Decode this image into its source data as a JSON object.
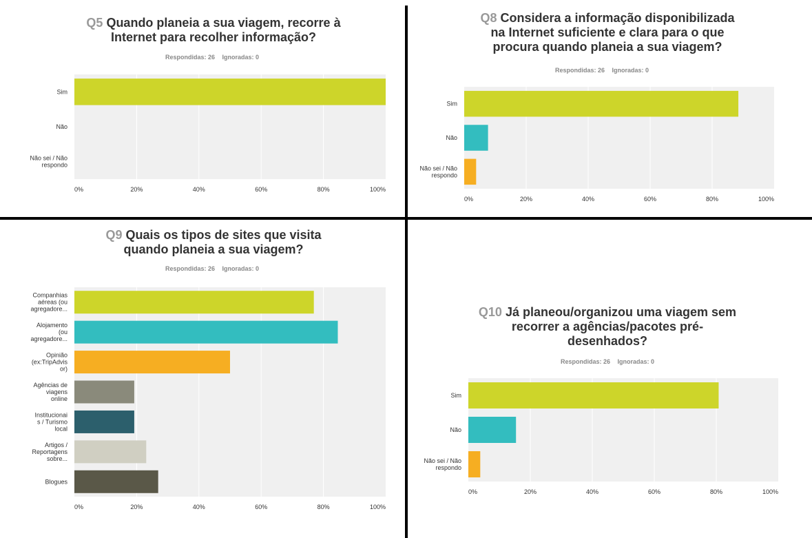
{
  "colors": {
    "yellow_green": "#cdd52a",
    "teal": "#33bdbf",
    "orange": "#f6ae22",
    "gray": "#8a8a7b",
    "dark_teal": "#2c5f6c",
    "light_gray": "#d0cfc2",
    "dark_olive": "#5a5848",
    "plot_bg": "#f0f0f0",
    "grid": "#ffffff"
  },
  "chart_data": [
    {
      "id": "q5",
      "type": "bar",
      "orientation": "horizontal",
      "qnum": "Q5",
      "title": "Quando planeia a sua viagem, recorre à\nInternet para recolher informação?",
      "stats": {
        "answered": "Respondidas: 26",
        "skipped": "Ignoradas: 0"
      },
      "categories": [
        [
          "Sim"
        ],
        [
          "Não"
        ],
        [
          "Não sei / Não",
          "respondo"
        ]
      ],
      "values": [
        100,
        0,
        0
      ],
      "colors": [
        "#cdd52a",
        "#33bdbf",
        "#f6ae22"
      ],
      "xlim": [
        0,
        100
      ],
      "xticks": [
        "0%",
        "20%",
        "40%",
        "60%",
        "80%",
        "100%"
      ],
      "grid": true
    },
    {
      "id": "q8",
      "type": "bar",
      "orientation": "horizontal",
      "qnum": "Q8",
      "title": "Considera a informação disponibilizada\nna Internet suficiente e clara para o que\nprocura quando planeia a sua viagem?",
      "stats": {
        "answered": "Respondidas: 26",
        "skipped": "Ignoradas: 0"
      },
      "categories": [
        [
          "Sim"
        ],
        [
          "Não"
        ],
        [
          "Não sei / Não",
          "respondo"
        ]
      ],
      "values": [
        88.46,
        7.69,
        3.85
      ],
      "colors": [
        "#cdd52a",
        "#33bdbf",
        "#f6ae22"
      ],
      "xlim": [
        0,
        100
      ],
      "xticks": [
        "0%",
        "20%",
        "40%",
        "60%",
        "80%",
        "100%"
      ],
      "grid": true
    },
    {
      "id": "q9",
      "type": "bar",
      "orientation": "horizontal",
      "qnum": "Q9",
      "title": "Quais os tipos de sites que visita\nquando planeia a sua viagem?",
      "stats": {
        "answered": "Respondidas: 26",
        "skipped": "Ignoradas: 0"
      },
      "categories": [
        [
          "Companhias",
          "aéreas (ou",
          "agregadore..."
        ],
        [
          "Alojamento",
          "(ou",
          "agregadore..."
        ],
        [
          "Opinião",
          "(ex:TripAdvis",
          "or)"
        ],
        [
          "Agências de",
          "viagens",
          "online"
        ],
        [
          "Institucionai",
          "s / Turismo",
          "local"
        ],
        [
          "Artigos /",
          "Reportagens",
          "sobre..."
        ],
        [
          "Blogues"
        ]
      ],
      "values": [
        76.92,
        84.62,
        50.0,
        19.23,
        19.23,
        23.08,
        26.92
      ],
      "colors": [
        "#cdd52a",
        "#33bdbf",
        "#f6ae22",
        "#8a8a7b",
        "#2c5f6c",
        "#d0cfc2",
        "#5a5848"
      ],
      "xlim": [
        0,
        100
      ],
      "xticks": [
        "0%",
        "20%",
        "40%",
        "60%",
        "80%",
        "100%"
      ],
      "grid": true
    },
    {
      "id": "q10",
      "type": "bar",
      "orientation": "horizontal",
      "qnum": "Q10",
      "title": "Já planeou/organizou uma viagem sem\nrecorrer a agências/pacotes pré-\ndesenhados?",
      "stats": {
        "answered": "Respondidas: 26",
        "skipped": "Ignoradas: 0"
      },
      "categories": [
        [
          "Sim"
        ],
        [
          "Não"
        ],
        [
          "Não sei / Não",
          "respondo"
        ]
      ],
      "values": [
        80.77,
        15.38,
        3.85
      ],
      "colors": [
        "#cdd52a",
        "#33bdbf",
        "#f6ae22"
      ],
      "xlim": [
        0,
        100
      ],
      "xticks": [
        "0%",
        "20%",
        "40%",
        "60%",
        "80%",
        "100%"
      ],
      "grid": true
    }
  ]
}
